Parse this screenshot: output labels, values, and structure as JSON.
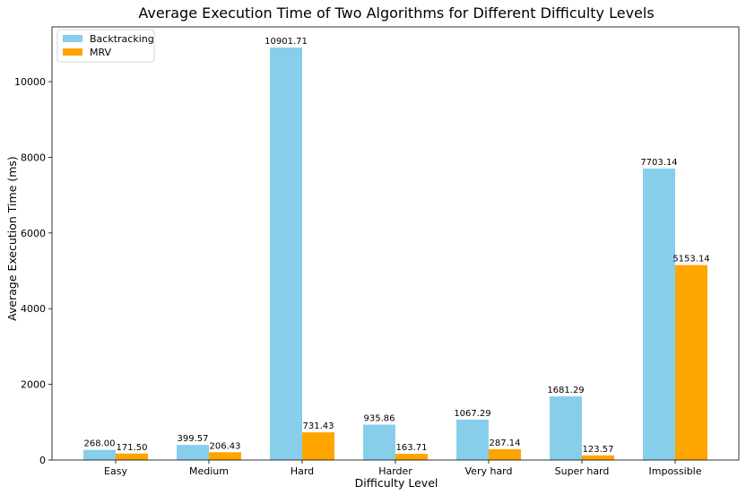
{
  "chart_data": {
    "type": "bar",
    "title": "Average Execution Time of Two Algorithms for Different Difficulty Levels",
    "xlabel": "Difficulty Level",
    "ylabel": "Average Execution Time (ms)",
    "categories": [
      "Easy",
      "Medium",
      "Hard",
      "Harder",
      "Very hard",
      "Super hard",
      "Impossible"
    ],
    "series": [
      {
        "name": "Backtracking",
        "color": "#87ceeb",
        "values": [
          268.0,
          399.57,
          10901.71,
          935.86,
          1067.29,
          1681.29,
          7703.14
        ],
        "labels": [
          "268.00",
          "399.57",
          "10901.71",
          "935.86",
          "1067.29",
          "1681.29",
          "7703.14"
        ]
      },
      {
        "name": "MRV",
        "color": "#ffa500",
        "values": [
          171.5,
          206.43,
          731.43,
          163.71,
          287.14,
          123.57,
          5153.14
        ],
        "labels": [
          "171.50",
          "206.43",
          "731.43",
          "163.71",
          "287.14",
          "123.57",
          "5153.14"
        ]
      }
    ],
    "ylim": [
      0,
      11446.8
    ],
    "yticks": [
      0,
      2000,
      4000,
      6000,
      8000,
      10000
    ],
    "ytick_labels": [
      "0",
      "2000",
      "4000",
      "6000",
      "8000",
      "10000"
    ],
    "legend_position": "top-left",
    "grid": false
  }
}
